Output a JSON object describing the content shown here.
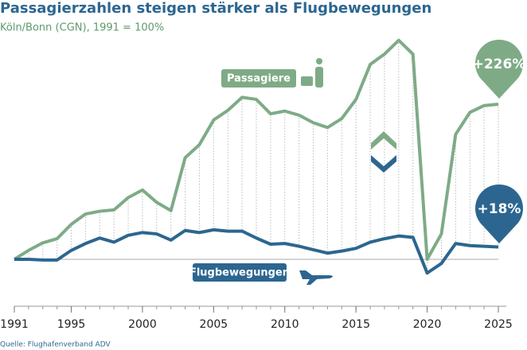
{
  "chart_data": {
    "type": "line",
    "title": "Passagierzahlen steigen stärker als Flugbewegungen",
    "subtitle": "Köln/Bonn (CGN), 1991 = 100%",
    "source": "Quelle: Flughafenverband ADV",
    "x": [
      1991,
      1992,
      1993,
      1994,
      1995,
      1996,
      1997,
      1998,
      1999,
      2000,
      2001,
      2002,
      2003,
      2004,
      2005,
      2006,
      2007,
      2008,
      2009,
      2010,
      2011,
      2012,
      2013,
      2014,
      2015,
      2016,
      2017,
      2018,
      2019,
      2020,
      2021,
      2022,
      2023,
      2024,
      2025
    ],
    "xlim": [
      1991,
      2025
    ],
    "xticks": [
      1991,
      1995,
      2000,
      2005,
      2010,
      2015,
      2020,
      2025
    ],
    "ylim": [
      60,
      450
    ],
    "reference_line": 100,
    "series": [
      {
        "name": "Passagiere",
        "color": "#7eab86",
        "values": [
          100,
          113,
          124,
          130,
          151,
          166,
          170,
          172,
          190,
          201,
          183,
          171,
          248,
          267,
          303,
          317,
          336,
          333,
          312,
          316,
          310,
          299,
          292,
          305,
          333,
          384,
          399,
          419,
          399,
          100,
          137,
          282,
          314,
          324,
          326
        ]
      },
      {
        "name": "Flugbewegungen",
        "color": "#2c6690",
        "values": [
          100,
          100,
          99,
          99,
          113,
          123,
          131,
          125,
          135,
          139,
          137,
          128,
          142,
          139,
          143,
          141,
          141,
          131,
          122,
          123,
          119,
          114,
          109,
          112,
          116,
          125,
          130,
          134,
          132,
          80,
          94,
          123,
          120,
          119,
          118
        ]
      }
    ],
    "annotations": [
      "+226%",
      "+18%"
    ]
  }
}
